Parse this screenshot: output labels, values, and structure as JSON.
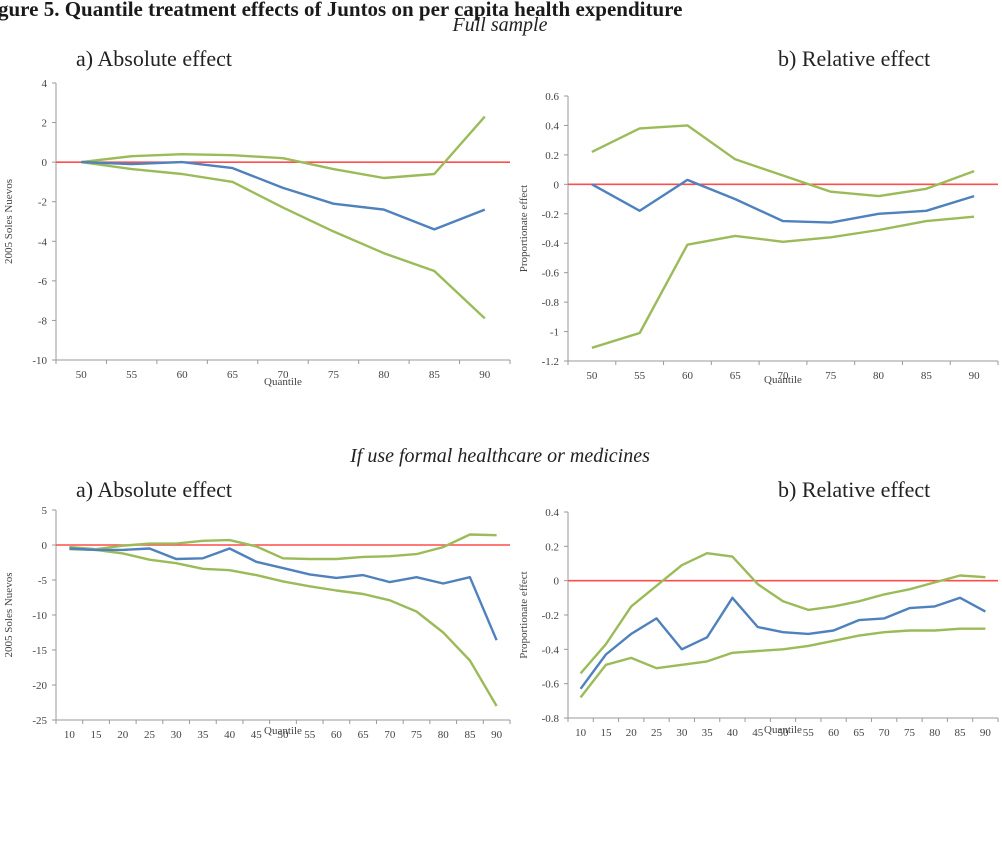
{
  "figure": {
    "title": "gure 5. Quantile treatment effects of Juntos on per capita health expenditure",
    "sections": [
      "Full sample",
      "If use formal healthcare or medicines"
    ]
  },
  "colors": {
    "estimate": "#4f81bd",
    "ci": "#9bbb59",
    "zero": "#ff4d4d",
    "axis": "#999999"
  },
  "chart_data": [
    {
      "type": "line",
      "panel_label": "a)   Absolute effect",
      "ylabel": "2005 Soles Nuevos",
      "xlabel": "Quantile",
      "x": [
        50,
        55,
        60,
        65,
        70,
        75,
        80,
        85,
        90
      ],
      "ylim": [
        -10,
        4
      ],
      "yticks": [
        -10,
        -8,
        -6,
        -4,
        -2,
        0,
        2,
        4
      ],
      "series": [
        {
          "role": "estimate",
          "values": [
            0.0,
            -0.1,
            0.0,
            -0.3,
            -1.3,
            -2.1,
            -2.4,
            -3.4,
            -2.4
          ]
        },
        {
          "role": "upper",
          "values": [
            0.0,
            0.3,
            0.4,
            0.35,
            0.2,
            -0.35,
            -0.8,
            -0.6,
            2.3
          ]
        },
        {
          "role": "lower",
          "values": [
            0.0,
            -0.35,
            -0.6,
            -1.0,
            -2.3,
            -3.5,
            -4.6,
            -5.5,
            -7.9
          ]
        }
      ]
    },
    {
      "type": "line",
      "panel_label": "b) Relative effect",
      "ylabel": "Proportionate effect",
      "xlabel": "Quantile",
      "x": [
        50,
        55,
        60,
        65,
        70,
        75,
        80,
        85,
        90
      ],
      "ylim": [
        -1.2,
        0.6
      ],
      "yticks": [
        -1.2,
        -1,
        -0.8,
        -0.6,
        -0.4,
        -0.2,
        0,
        0.2,
        0.4,
        0.6
      ],
      "series": [
        {
          "role": "estimate",
          "values": [
            0.0,
            -0.18,
            0.03,
            -0.1,
            -0.25,
            -0.26,
            -0.2,
            -0.18,
            -0.08
          ]
        },
        {
          "role": "upper",
          "values": [
            0.22,
            0.38,
            0.4,
            0.17,
            0.06,
            -0.05,
            -0.08,
            -0.03,
            0.09
          ]
        },
        {
          "role": "lower",
          "values": [
            -1.11,
            -1.01,
            -0.41,
            -0.35,
            -0.39,
            -0.36,
            -0.31,
            -0.25,
            -0.22
          ]
        }
      ]
    },
    {
      "type": "line",
      "panel_label": "a)   Absolute effect",
      "ylabel": "2005 Soles Nuevos",
      "xlabel": "Quantile",
      "x": [
        10,
        15,
        20,
        25,
        30,
        35,
        40,
        45,
        50,
        55,
        60,
        65,
        70,
        75,
        80,
        85,
        90
      ],
      "ylim": [
        -25,
        5
      ],
      "yticks": [
        -25,
        -20,
        -15,
        -10,
        -5,
        0,
        5
      ],
      "series": [
        {
          "role": "estimate",
          "values": [
            -0.5,
            -0.7,
            -0.7,
            -0.5,
            -2.0,
            -1.9,
            -0.5,
            -2.4,
            -3.3,
            -4.2,
            -4.7,
            -4.3,
            -5.3,
            -4.6,
            -5.5,
            -4.6,
            -13.6
          ]
        },
        {
          "role": "upper",
          "values": [
            -0.3,
            -0.6,
            -0.1,
            0.2,
            0.2,
            0.6,
            0.7,
            -0.2,
            -1.9,
            -2.0,
            -2.0,
            -1.7,
            -1.6,
            -1.3,
            -0.3,
            1.5,
            1.4
          ]
        },
        {
          "role": "lower",
          "values": [
            -0.6,
            -0.7,
            -1.2,
            -2.1,
            -2.6,
            -3.4,
            -3.6,
            -4.3,
            -5.2,
            -5.9,
            -6.5,
            -7.0,
            -7.9,
            -9.5,
            -12.5,
            -16.5,
            -23.0
          ]
        }
      ]
    },
    {
      "type": "line",
      "panel_label": "b) Relative effect",
      "ylabel": "Proportionate effect",
      "xlabel": "Quantile",
      "x": [
        10,
        15,
        20,
        25,
        30,
        35,
        40,
        45,
        50,
        55,
        60,
        65,
        70,
        75,
        80,
        85,
        90
      ],
      "ylim": [
        -0.8,
        0.4
      ],
      "yticks": [
        -0.8,
        -0.6,
        -0.4,
        -0.2,
        0,
        0.2,
        0.4
      ],
      "series": [
        {
          "role": "estimate",
          "values": [
            -0.63,
            -0.43,
            -0.31,
            -0.22,
            -0.4,
            -0.33,
            -0.1,
            -0.27,
            -0.3,
            -0.31,
            -0.29,
            -0.23,
            -0.22,
            -0.16,
            -0.15,
            -0.1,
            -0.18
          ]
        },
        {
          "role": "upper",
          "values": [
            -0.54,
            -0.37,
            -0.15,
            -0.03,
            0.09,
            0.16,
            0.14,
            -0.02,
            -0.12,
            -0.17,
            -0.15,
            -0.12,
            -0.08,
            -0.05,
            -0.01,
            0.03,
            0.02
          ]
        },
        {
          "role": "lower",
          "values": [
            -0.68,
            -0.49,
            -0.45,
            -0.51,
            -0.49,
            -0.47,
            -0.42,
            -0.41,
            -0.4,
            -0.38,
            -0.35,
            -0.32,
            -0.3,
            -0.29,
            -0.29,
            -0.28,
            -0.28
          ]
        }
      ]
    }
  ]
}
